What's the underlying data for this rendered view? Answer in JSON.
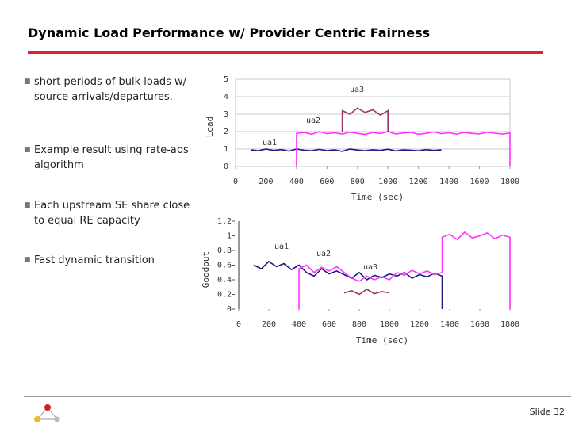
{
  "slide": {
    "title": "Dynamic Load Performance w/ Provider Centric Fairness",
    "bullets": [
      "short periods of bulk loads w/ source arrivals/departures.",
      "Example result using rate-abs algorithm",
      "Each upstream SE share close to equal RE capacity",
      "Fast dynamic transition"
    ],
    "footer": "Slide 32"
  },
  "chart_data": [
    {
      "type": "line",
      "xlabel": "Time (sec)",
      "ylabel": "Load",
      "xlim": [
        0,
        1800
      ],
      "ylim": [
        0,
        5
      ],
      "xticks": [
        0,
        200,
        400,
        600,
        800,
        1000,
        1200,
        1400,
        1600,
        1800
      ],
      "yticks": [
        0,
        1,
        2,
        3,
        4,
        5
      ],
      "grid": true,
      "annotations": [
        "ua3",
        "ua2",
        "ua1"
      ],
      "series": [
        {
          "name": "ua1",
          "color": "#1c1c80",
          "x": [
            100,
            150,
            200,
            250,
            300,
            350,
            400,
            450,
            500,
            550,
            600,
            650,
            700,
            750,
            800,
            850,
            900,
            950,
            1000,
            1050,
            1100,
            1150,
            1200,
            1250,
            1300,
            1350
          ],
          "values": [
            0.95,
            0.9,
            1.0,
            0.92,
            0.97,
            0.88,
            1.0,
            0.93,
            0.9,
            0.98,
            0.91,
            0.95,
            0.87,
            1.0,
            0.94,
            0.9,
            0.96,
            0.92,
            0.99,
            0.89,
            0.95,
            0.93,
            0.9,
            0.97,
            0.92,
            0.95
          ]
        },
        {
          "name": "ua2",
          "color": "#ff33ff",
          "x": [
            400,
            400,
            450,
            500,
            550,
            600,
            650,
            700,
            750,
            800,
            850,
            900,
            950,
            1000,
            1050,
            1100,
            1150,
            1200,
            1250,
            1300,
            1350,
            1400,
            1450,
            1500,
            1550,
            1600,
            1650,
            1700,
            1750,
            1800,
            1800
          ],
          "values": [
            0,
            1.9,
            1.95,
            1.85,
            2.0,
            1.88,
            1.93,
            1.86,
            1.97,
            1.9,
            1.84,
            1.95,
            1.89,
            2.0,
            1.87,
            1.92,
            1.96,
            1.85,
            1.9,
            1.98,
            1.88,
            1.93,
            1.86,
            1.95,
            1.9,
            1.87,
            1.97,
            1.91,
            1.86,
            1.92,
            0
          ]
        },
        {
          "name": "ua3",
          "color": "#993366",
          "x": [
            700,
            700,
            750,
            800,
            850,
            900,
            950,
            1000,
            1000
          ],
          "values": [
            2,
            3.2,
            3.0,
            3.35,
            3.1,
            3.25,
            2.95,
            3.2,
            2
          ]
        }
      ]
    },
    {
      "type": "line",
      "xlabel": "Time (sec)",
      "ylabel": "Goodput",
      "xlim": [
        0,
        1800
      ],
      "ylim": [
        0,
        1.2
      ],
      "xticks": [
        0,
        200,
        400,
        600,
        800,
        1000,
        1200,
        1400,
        1600,
        1800
      ],
      "yticks": [
        0,
        0.2,
        0.4,
        0.6,
        0.8,
        1,
        1.2
      ],
      "grid": false,
      "annotations": [
        "ua1",
        "ua2",
        "ua3"
      ],
      "series": [
        {
          "name": "ua1",
          "color": "#1c1c80",
          "x": [
            100,
            150,
            200,
            250,
            300,
            350,
            400,
            450,
            500,
            550,
            600,
            650,
            700,
            750,
            800,
            850,
            900,
            950,
            1000,
            1050,
            1100,
            1150,
            1200,
            1250,
            1300,
            1350,
            1350
          ],
          "values": [
            0.6,
            0.55,
            0.65,
            0.58,
            0.62,
            0.54,
            0.6,
            0.5,
            0.45,
            0.55,
            0.48,
            0.52,
            0.47,
            0.42,
            0.5,
            0.4,
            0.46,
            0.43,
            0.48,
            0.45,
            0.5,
            0.42,
            0.47,
            0.44,
            0.49,
            0.45,
            0
          ]
        },
        {
          "name": "ua2",
          "color": "#ff33ff",
          "x": [
            400,
            400,
            450,
            500,
            550,
            600,
            650,
            700,
            750,
            800,
            850,
            900,
            950,
            1000,
            1050,
            1100,
            1150,
            1200,
            1250,
            1300,
            1350,
            1350,
            1400,
            1450,
            1500,
            1550,
            1600,
            1650,
            1700,
            1750,
            1800,
            1800
          ],
          "values": [
            0,
            0.55,
            0.6,
            0.5,
            0.57,
            0.52,
            0.58,
            0.5,
            0.42,
            0.38,
            0.45,
            0.4,
            0.44,
            0.4,
            0.5,
            0.46,
            0.53,
            0.48,
            0.52,
            0.47,
            0.5,
            0.98,
            1.02,
            0.95,
            1.05,
            0.97,
            1.0,
            1.04,
            0.96,
            1.01,
            0.98,
            0
          ]
        },
        {
          "name": "ua3",
          "color": "#993366",
          "x": [
            700,
            750,
            800,
            850,
            900,
            950,
            1000
          ],
          "values": [
            0.22,
            0.25,
            0.2,
            0.27,
            0.21,
            0.24,
            0.22
          ]
        }
      ]
    }
  ]
}
